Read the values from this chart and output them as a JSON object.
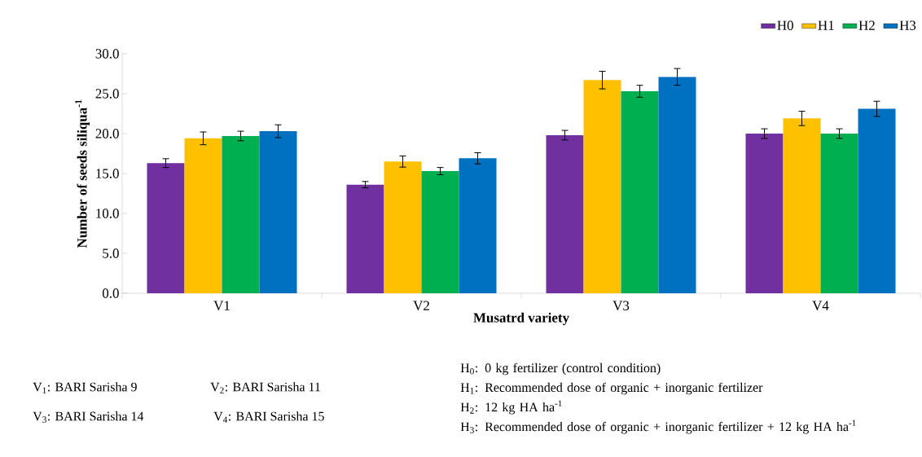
{
  "chart_data": {
    "type": "bar",
    "xlabel": "Musatrd variety",
    "ylabel": "Number of seeds siliqua$^{-1}$",
    "categories": [
      "V1",
      "V2",
      "V3",
      "V4"
    ],
    "series": [
      {
        "name": "H0",
        "color": "#7030a0",
        "values": [
          16.3,
          13.6,
          19.8,
          20.0
        ],
        "errors": [
          0.55,
          0.4,
          0.6,
          0.6
        ]
      },
      {
        "name": "H1",
        "color": "#ffc000",
        "values": [
          19.4,
          16.5,
          26.7,
          21.9
        ],
        "errors": [
          0.8,
          0.7,
          1.1,
          0.9
        ]
      },
      {
        "name": "H2",
        "color": "#00b050",
        "values": [
          19.7,
          15.3,
          25.3,
          20.0
        ],
        "errors": [
          0.6,
          0.45,
          0.75,
          0.6
        ]
      },
      {
        "name": "H3",
        "color": "#0070c0",
        "values": [
          20.3,
          16.9,
          27.1,
          23.1
        ],
        "errors": [
          0.8,
          0.7,
          1.05,
          0.95
        ]
      }
    ],
    "ylim": [
      0,
      30
    ],
    "yticks": [
      {
        "value": 0,
        "label": "0.0"
      },
      {
        "value": 5,
        "label": "5.0"
      },
      {
        "value": 10,
        "label": "10.0"
      },
      {
        "value": 15,
        "label": "15.0"
      },
      {
        "value": 20,
        "label": "20.0"
      },
      {
        "value": 25,
        "label": "25.0"
      },
      {
        "value": 30,
        "label": "30.0"
      }
    ],
    "legend": "top right",
    "grid": false,
    "annotations": [
      "V$_{1}$: BARI Sarisha 9",
      "V$_{2}$: BARI Sarisha 11",
      "V$_{3}$: BARI Sarisha 14",
      "V$_{4}$: BARI Sarisha 15",
      "H$_{0}$: 0 kg fertilizer (control condition)",
      "H$_{1}$: Recommended dose of organic + inorganic fertilizer",
      "H$_{2}$: 12 kg HA ha$^{-1}$",
      "H$_{3}$: Recommended dose of organic + inorganic fertilizer + 12 kg HA ha$^{-1}$"
    ]
  }
}
